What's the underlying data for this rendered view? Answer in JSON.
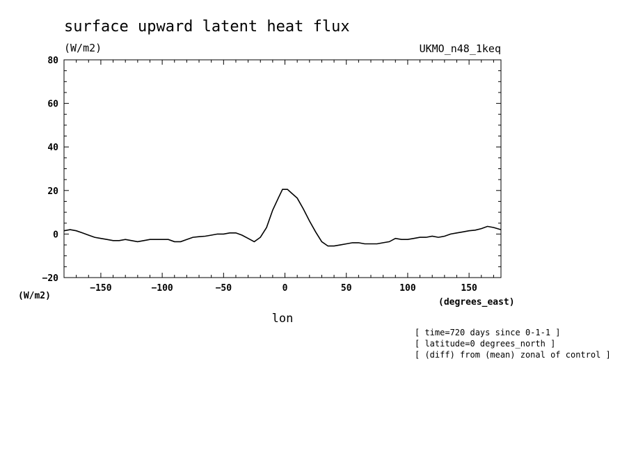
{
  "chart_data": {
    "type": "line",
    "title": "surface upward latent heat flux",
    "yunit_top": "(W/m2)",
    "yunit_bottom": "(W/m2)",
    "dataset": "UKMO_n48_1keq",
    "xlabel": "lon",
    "xunit": "(degrees_east)",
    "xlim": [
      -180,
      176
    ],
    "ylim": [
      -20,
      80
    ],
    "xticks": [
      -150,
      -100,
      -50,
      0,
      50,
      100,
      150
    ],
    "yticks": [
      -20,
      0,
      20,
      40,
      60,
      80
    ],
    "grid": false,
    "annotations": [
      "[ time=720 days since 0-1-1 ]",
      "[ latitude=0 degrees_north ]",
      "[ (diff) from (mean) zonal of control ]"
    ],
    "series": [
      {
        "x": [
          -180,
          -175,
          -170,
          -165,
          -160,
          -155,
          -150,
          -145,
          -140,
          -135,
          -130,
          -125,
          -120,
          -115,
          -110,
          -105,
          -100,
          -95,
          -90,
          -85,
          -80,
          -75,
          -70,
          -65,
          -60,
          -55,
          -50,
          -45,
          -40,
          -35,
          -30,
          -25,
          -20,
          -15,
          -10,
          -5,
          -2,
          2,
          5,
          10,
          15,
          20,
          25,
          30,
          35,
          40,
          45,
          50,
          55,
          60,
          65,
          70,
          75,
          80,
          85,
          90,
          95,
          100,
          105,
          110,
          115,
          120,
          125,
          130,
          135,
          140,
          145,
          150,
          155,
          160,
          165,
          170,
          176
        ],
        "y": [
          1.5,
          2,
          1.5,
          0.5,
          -0.5,
          -1.5,
          -2,
          -2.5,
          -3,
          -3,
          -2.5,
          -3,
          -3.5,
          -3,
          -2.5,
          -2.5,
          -2.5,
          -2.5,
          -3.5,
          -3.5,
          -2.5,
          -1.5,
          -1.2,
          -1,
          -0.5,
          0,
          0,
          0.5,
          0.5,
          -0.5,
          -2,
          -3.5,
          -1.5,
          3,
          11,
          17,
          20.5,
          20.5,
          19,
          16.5,
          11.5,
          6,
          1,
          -3.5,
          -5.5,
          -5.5,
          -5,
          -4.5,
          -4,
          -4,
          -4.5,
          -4.5,
          -4.5,
          -4,
          -3.5,
          -2,
          -2.5,
          -2.5,
          -2,
          -1.5,
          -1.5,
          -1,
          -1.5,
          -1,
          0,
          0.5,
          1,
          1.5,
          1.8,
          2.5,
          3.5,
          3,
          2
        ]
      }
    ]
  }
}
